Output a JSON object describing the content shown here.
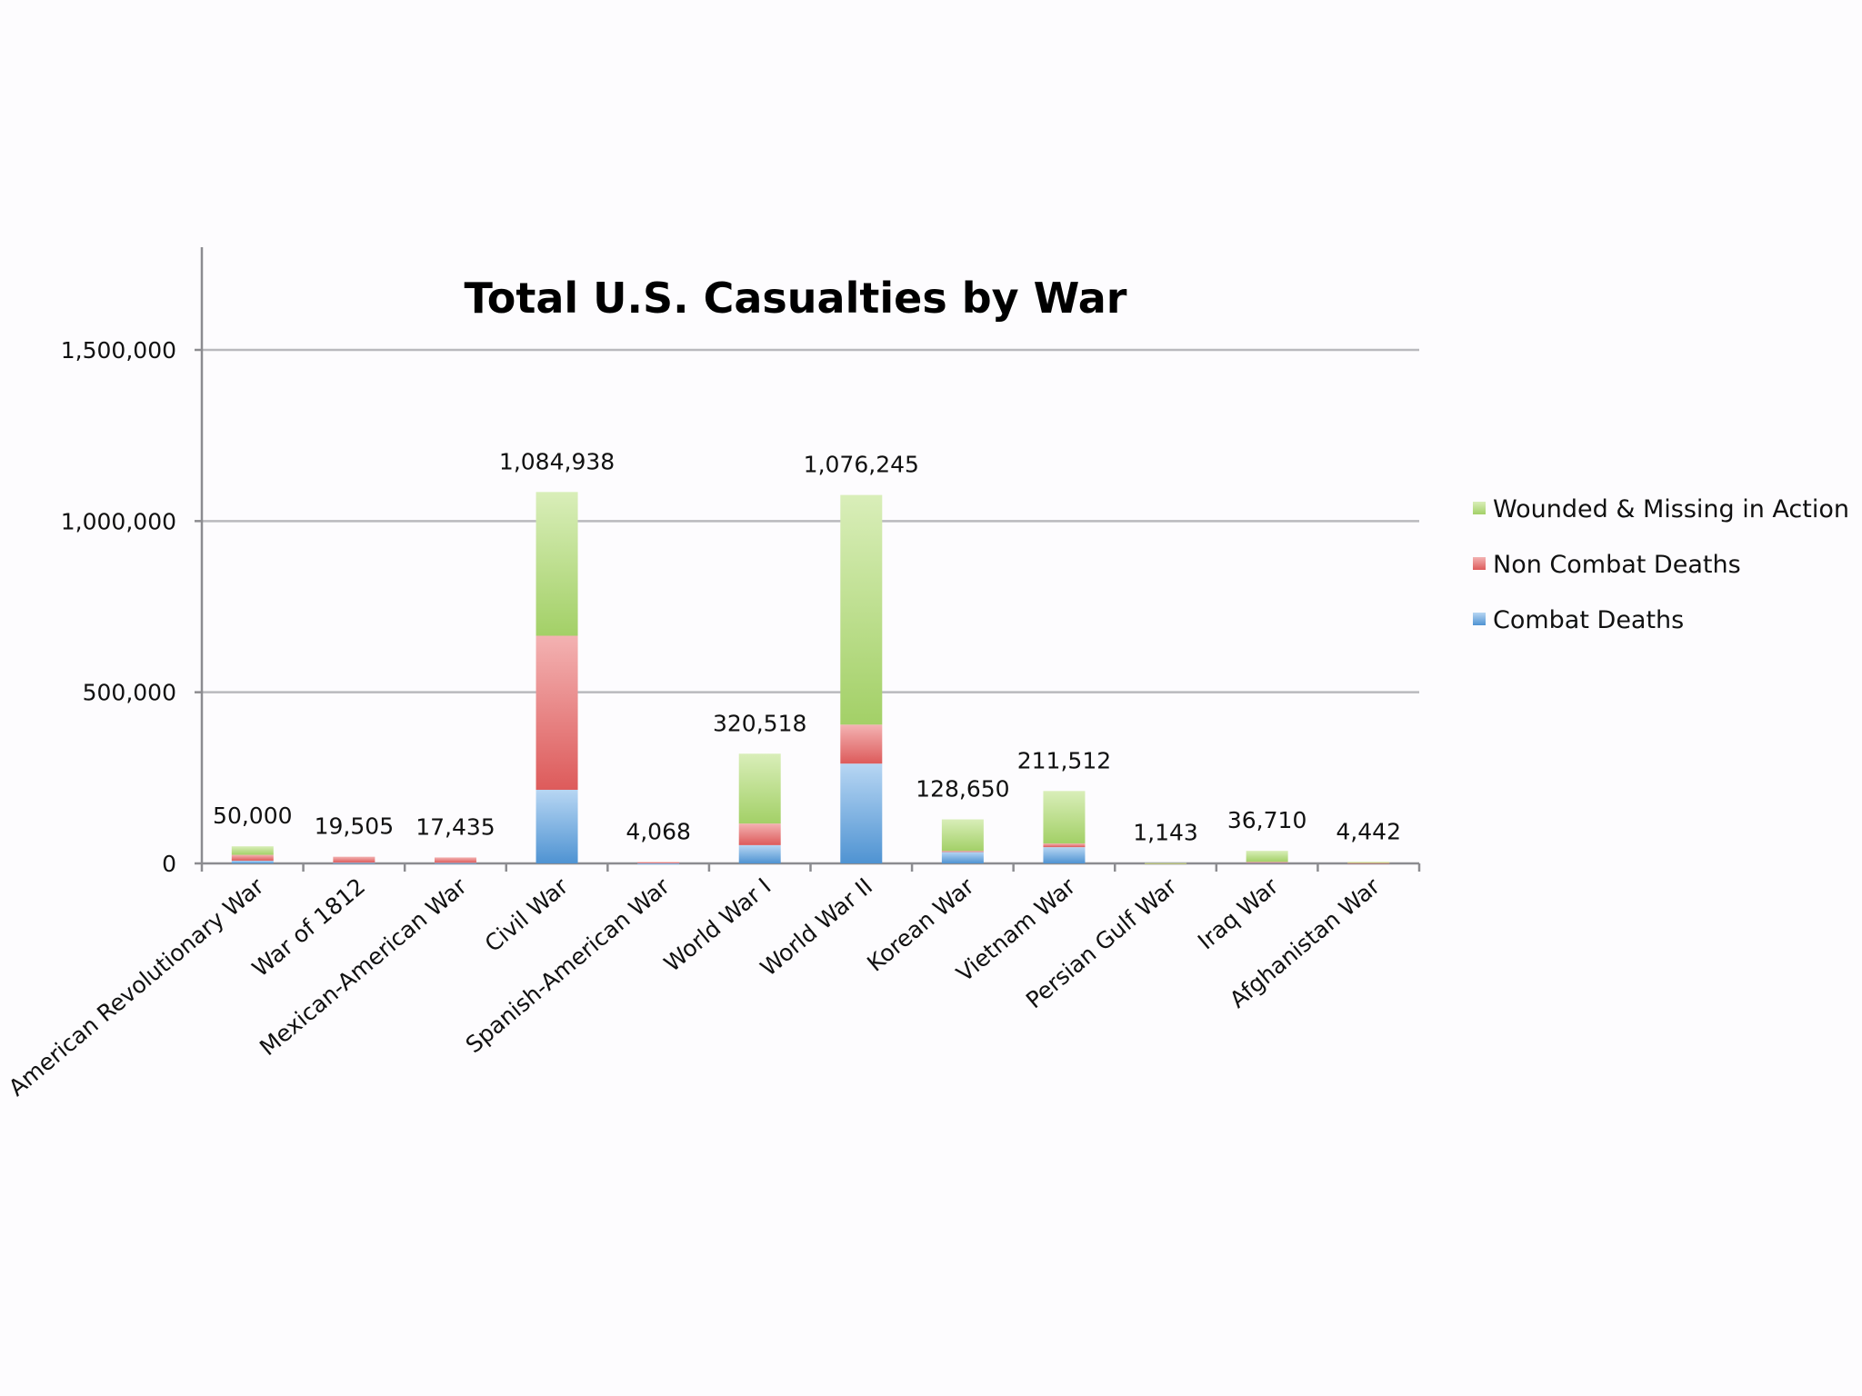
{
  "chart_data": {
    "type": "bar",
    "stacked": true,
    "title": "Total U.S. Casualties by War",
    "xlabel": "",
    "ylabel": "",
    "ylim": [
      0,
      1750000
    ],
    "yticks": [
      0,
      500000,
      1000000,
      1500000
    ],
    "ytick_labels": [
      "0",
      "500,000",
      "1,000,000",
      "1,500,000"
    ],
    "grid": true,
    "legend_position": "right",
    "categories": [
      "American Revolutionary War",
      "War of 1812",
      "Mexican-American War",
      "Civil War",
      "Spanish-American War",
      "World War I",
      "World War II",
      "Korean War",
      "Vietnam War",
      "Persian Gulf War",
      "Iraq War",
      "Afghanistan War"
    ],
    "series": [
      {
        "name": "Combat Deaths",
        "color": "#5b9bd5",
        "values": [
          8000,
          2260,
          1733,
          215000,
          385,
          53402,
          291557,
          33739,
          47434,
          147,
          3480,
          1834
        ]
      },
      {
        "name": "Non Combat Deaths",
        "color": "#e06666",
        "values": [
          17000,
          17245,
          15702,
          450000,
          3683,
          63114,
          113842,
          2835,
          10786,
          235,
          930,
          418
        ]
      },
      {
        "name": "Wounded & Missing in Action",
        "color": "#a9d66e",
        "values": [
          25000,
          0,
          0,
          419938,
          0,
          204002,
          670846,
          92076,
          153292,
          761,
          32300,
          2190
        ]
      }
    ],
    "totals": [
      50000,
      19505,
      17435,
      1084938,
      4068,
      320518,
      1076245,
      128650,
      211512,
      1143,
      36710,
      4442
    ],
    "total_labels": [
      "50,000",
      "19,505",
      "17,435",
      "1,084,938",
      "4,068",
      "320,518",
      "1,076,245",
      "128,650",
      "211,512",
      "1,143",
      "36,710",
      "4,442"
    ],
    "legend": [
      "Wounded & Missing in Action",
      "Non Combat Deaths",
      "Combat Deaths"
    ]
  }
}
